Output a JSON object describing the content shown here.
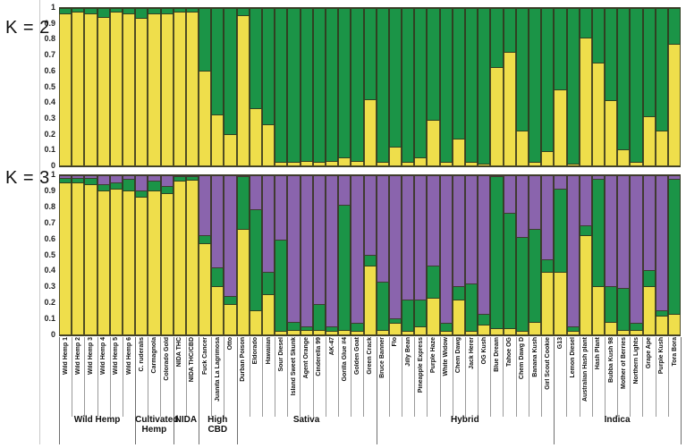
{
  "colors": {
    "yellow": "#EFDE4B",
    "green": "#1B9447",
    "purple": "#8A64AD",
    "outline": "#32321c"
  },
  "axis_ticks": [
    "1",
    "0.9",
    "0.8",
    "0.7",
    "0.6",
    "0.5",
    "0.4",
    "0.3",
    "0.2",
    "0.1",
    "0"
  ],
  "chart_data": {
    "type": "bar",
    "subtype": "stacked-admixture",
    "samples": [
      "Wild Hemp 1",
      "Wild Hemp 2",
      "Wild Hemp 3",
      "Wild Hemp 4",
      "Wild Hemp 5",
      "Wild Hemp 6",
      "C. ruderalis",
      "Carmagnola",
      "Colorado Gold",
      "NIDA THC",
      "NIDA THC/CBD",
      "Fuck Cancer",
      "Juanita La Lagrimosa",
      "Otto",
      "Durban Poison",
      "Eldorado",
      "Hawaiian",
      "Sour Diesel",
      "Island Sweet Skunk",
      "Agent Orange",
      "Cinderella 99",
      "AK-47",
      "Gorilla Glue #4",
      "Golden Goat",
      "Green Crack",
      "Bruce Banner",
      "Flo",
      "Jilly Bean",
      "Pineapple Express",
      "Purple Haze",
      "White Widow",
      "Chem Dawg",
      "Jack Herer",
      "OG Kush",
      "Blue Dream",
      "Tahoe OG",
      "Chem Dawg D",
      "Banana Kush",
      "Girl Scout Cookie",
      "G13",
      "Lemon Diesel",
      "Australian Hash plant",
      "Hash Plant",
      "Bubba Kush 98",
      "Mother of Berries",
      "Northern Lights",
      "Grape Ape",
      "Purple Kush",
      "Tora Bora"
    ],
    "groups": [
      {
        "label": "Wild Hemp",
        "count": 6
      },
      {
        "label": "Cultivated Hemp",
        "count": 3
      },
      {
        "label": "NIDA",
        "count": 2
      },
      {
        "label": "High CBD",
        "count": 3
      },
      {
        "label": "Sativa",
        "count": 11
      },
      {
        "label": "Hybrid",
        "count": 14
      },
      {
        "label": "Indica",
        "count": 10
      }
    ],
    "panels": [
      {
        "id": "k2",
        "label": "K = 2",
        "ylim": [
          0,
          1
        ],
        "stack_order_top_to_bottom": [
          "green",
          "yellow"
        ],
        "series": [
          {
            "name": "green",
            "values": [
              0.04,
              0.03,
              0.04,
              0.06,
              0.03,
              0.04,
              0.07,
              0.04,
              0.04,
              0.03,
              0.03,
              0.4,
              0.68,
              0.8,
              0.05,
              0.64,
              0.74,
              0.98,
              0.98,
              0.97,
              0.98,
              0.97,
              0.95,
              0.97,
              0.58,
              0.98,
              0.88,
              0.98,
              0.95,
              0.71,
              0.98,
              0.83,
              0.98,
              0.99,
              0.38,
              0.28,
              0.78,
              0.98,
              0.91,
              0.52,
              0.99,
              0.19,
              0.35,
              0.59,
              0.9,
              0.98,
              0.69,
              0.78,
              0.23
            ]
          },
          {
            "name": "yellow",
            "values": [
              0.96,
              0.97,
              0.96,
              0.94,
              0.97,
              0.96,
              0.93,
              0.96,
              0.96,
              0.97,
              0.97,
              0.6,
              0.32,
              0.2,
              0.95,
              0.36,
              0.26,
              0.02,
              0.02,
              0.03,
              0.02,
              0.03,
              0.05,
              0.03,
              0.42,
              0.02,
              0.12,
              0.02,
              0.05,
              0.29,
              0.02,
              0.17,
              0.02,
              0.01,
              0.62,
              0.72,
              0.22,
              0.02,
              0.09,
              0.48,
              0.01,
              0.81,
              0.65,
              0.41,
              0.1,
              0.02,
              0.31,
              0.22,
              0.77
            ]
          }
        ]
      },
      {
        "id": "k3",
        "label": "K = 3",
        "ylim": [
          0,
          1
        ],
        "stack_order_top_to_bottom": [
          "purple",
          "green",
          "yellow"
        ],
        "series": [
          {
            "name": "purple",
            "values": [
              0.02,
              0.02,
              0.02,
              0.06,
              0.05,
              0.03,
              0.1,
              0.04,
              0.07,
              0.01,
              0.01,
              0.38,
              0.58,
              0.76,
              0.01,
              0.22,
              0.61,
              0.41,
              0.92,
              0.95,
              0.81,
              0.95,
              0.19,
              0.93,
              0.5,
              0.67,
              0.9,
              0.78,
              0.78,
              0.57,
              0.93,
              0.7,
              0.68,
              0.87,
              0.01,
              0.24,
              0.39,
              0.34,
              0.53,
              0.09,
              0.95,
              0.32,
              0.03,
              0.7,
              0.71,
              0.93,
              0.6,
              0.85,
              0.03
            ]
          },
          {
            "name": "green",
            "values": [
              0.03,
              0.03,
              0.04,
              0.04,
              0.04,
              0.07,
              0.04,
              0.06,
              0.05,
              0.03,
              0.02,
              0.05,
              0.12,
              0.05,
              0.33,
              0.63,
              0.14,
              0.57,
              0.05,
              0.02,
              0.16,
              0.03,
              0.78,
              0.05,
              0.07,
              0.3,
              0.03,
              0.2,
              0.17,
              0.2,
              0.05,
              0.08,
              0.3,
              0.07,
              0.95,
              0.72,
              0.59,
              0.58,
              0.08,
              0.52,
              0.03,
              0.06,
              0.67,
              0.22,
              0.26,
              0.04,
              0.1,
              0.03,
              0.84
            ]
          },
          {
            "name": "yellow",
            "values": [
              0.95,
              0.95,
              0.94,
              0.9,
              0.91,
              0.9,
              0.86,
              0.9,
              0.88,
              0.96,
              0.97,
              0.57,
              0.3,
              0.19,
              0.66,
              0.15,
              0.25,
              0.02,
              0.03,
              0.03,
              0.03,
              0.02,
              0.03,
              0.02,
              0.43,
              0.03,
              0.07,
              0.02,
              0.05,
              0.23,
              0.02,
              0.22,
              0.02,
              0.06,
              0.04,
              0.04,
              0.02,
              0.08,
              0.39,
              0.39,
              0.02,
              0.62,
              0.3,
              0.08,
              0.03,
              0.03,
              0.3,
              0.12,
              0.13
            ]
          }
        ]
      }
    ]
  }
}
